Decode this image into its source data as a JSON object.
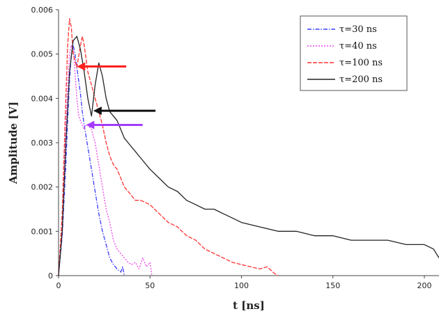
{
  "chart_data": {
    "type": "line",
    "title": "",
    "xlabel": "t [ns]",
    "ylabel": "Amplitude [V]",
    "xlim": [
      0,
      208
    ],
    "ylim": [
      0,
      0.006
    ],
    "grid": false,
    "legend_position": "top-right",
    "x_ticks": [
      0,
      50,
      100,
      150,
      200
    ],
    "x_tick_labels": [
      "0",
      "50",
      "100",
      "150",
      "200"
    ],
    "y_ticks": [
      0,
      0.001,
      0.002,
      0.003,
      0.004,
      0.005,
      0.006
    ],
    "y_tick_labels": [
      "0",
      "0.001",
      "0.002",
      "0.003",
      "0.004",
      "0.005",
      "0.006"
    ],
    "series": [
      {
        "name": "τ=30 ns",
        "color": "#3a3aff",
        "dash": "6,2,1.5,2",
        "x": [
          0,
          2,
          4,
          5,
          6,
          7,
          8,
          9,
          10,
          11,
          12,
          13,
          14,
          16,
          18,
          20,
          22,
          24,
          26,
          28,
          30,
          32,
          34,
          35,
          36
        ],
        "y": [
          0,
          0.0009,
          0.0025,
          0.0035,
          0.0044,
          0.005,
          0.0052,
          0.005,
          0.0047,
          0.0044,
          0.0041,
          0.0037,
          0.0034,
          0.0029,
          0.0024,
          0.0019,
          0.0014,
          0.001,
          0.0007,
          0.0004,
          0.00025,
          0.00015,
          8e-05,
          0.0002,
          0
        ]
      },
      {
        "name": "τ=40 ns",
        "color": "#ee44ee",
        "dash": "2,2",
        "x": [
          0,
          2,
          4,
          5,
          6,
          7,
          8,
          9,
          10,
          11,
          12,
          13,
          14,
          15,
          16,
          18,
          20,
          22,
          24,
          26,
          28,
          30,
          32,
          34,
          36,
          38,
          40,
          42,
          44,
          46,
          48,
          50,
          51
        ],
        "y": [
          0,
          0.0012,
          0.0033,
          0.0043,
          0.005,
          0.0052,
          0.0051,
          0.0046,
          0.004,
          0.0036,
          0.0035,
          0.0034,
          0.0033,
          0.0034,
          0.0034,
          0.0033,
          0.003,
          0.0025,
          0.002,
          0.0015,
          0.0012,
          0.0008,
          0.0006,
          0.0005,
          0.0004,
          0.0003,
          0.00025,
          0.0003,
          0.00015,
          0.0004,
          0.0002,
          0.0003,
          0
        ]
      },
      {
        "name": "τ=100 ns",
        "color": "#ff3333",
        "dash": "6,2",
        "x": [
          0,
          2,
          4,
          5,
          6,
          7,
          8,
          10,
          12,
          13,
          14,
          16,
          18,
          20,
          22,
          24,
          26,
          28,
          30,
          32,
          34,
          36,
          38,
          40,
          42,
          45,
          50,
          55,
          60,
          65,
          70,
          75,
          80,
          85,
          90,
          95,
          100,
          105,
          110,
          114,
          118,
          120
        ],
        "y": [
          0,
          0.0014,
          0.004,
          0.0052,
          0.0058,
          0.0056,
          0.005,
          0.0047,
          0.0052,
          0.0054,
          0.0052,
          0.0046,
          0.0043,
          0.004,
          0.0037,
          0.0034,
          0.003,
          0.0027,
          0.0025,
          0.0024,
          0.0022,
          0.002,
          0.0019,
          0.0018,
          0.0017,
          0.0017,
          0.0016,
          0.0014,
          0.0012,
          0.0011,
          0.0009,
          0.0008,
          0.0006,
          0.0005,
          0.0004,
          0.0003,
          0.00025,
          0.0002,
          0.00015,
          0.0002,
          5e-05,
          0
        ]
      },
      {
        "name": "τ=200 ns",
        "color": "#222222",
        "dash": "",
        "x": [
          0,
          2,
          4,
          6,
          8,
          10,
          12,
          14,
          16,
          18,
          20,
          22,
          24,
          26,
          28,
          30,
          32,
          34,
          36,
          38,
          40,
          42,
          44,
          46,
          50,
          55,
          60,
          65,
          70,
          75,
          80,
          85,
          90,
          95,
          100,
          110,
          120,
          130,
          140,
          150,
          160,
          170,
          180,
          190,
          200,
          205,
          208
        ],
        "y": [
          0,
          0.001,
          0.003,
          0.0046,
          0.0053,
          0.0054,
          0.0051,
          0.0046,
          0.004,
          0.0036,
          0.0043,
          0.0048,
          0.0045,
          0.004,
          0.0037,
          0.0036,
          0.0035,
          0.0033,
          0.0031,
          0.003,
          0.0029,
          0.0028,
          0.0027,
          0.0026,
          0.0024,
          0.0022,
          0.002,
          0.0019,
          0.0017,
          0.0016,
          0.0015,
          0.0015,
          0.0014,
          0.0013,
          0.0012,
          0.0011,
          0.001,
          0.001,
          0.0009,
          0.0009,
          0.0008,
          0.0008,
          0.0008,
          0.0007,
          0.0007,
          0.0006,
          0.0004
        ]
      }
    ],
    "annotations": [
      {
        "kind": "arrow",
        "color": "#ff2020",
        "from": [
          37,
          0.00472
        ],
        "to": [
          10,
          0.00472
        ]
      },
      {
        "kind": "arrow",
        "color": "#111111",
        "from": [
          53,
          0.00372
        ],
        "to": [
          19,
          0.00372
        ]
      },
      {
        "kind": "arrow",
        "color": "#a33bff",
        "from": [
          46,
          0.0034
        ],
        "to": [
          15,
          0.0034
        ]
      }
    ]
  }
}
